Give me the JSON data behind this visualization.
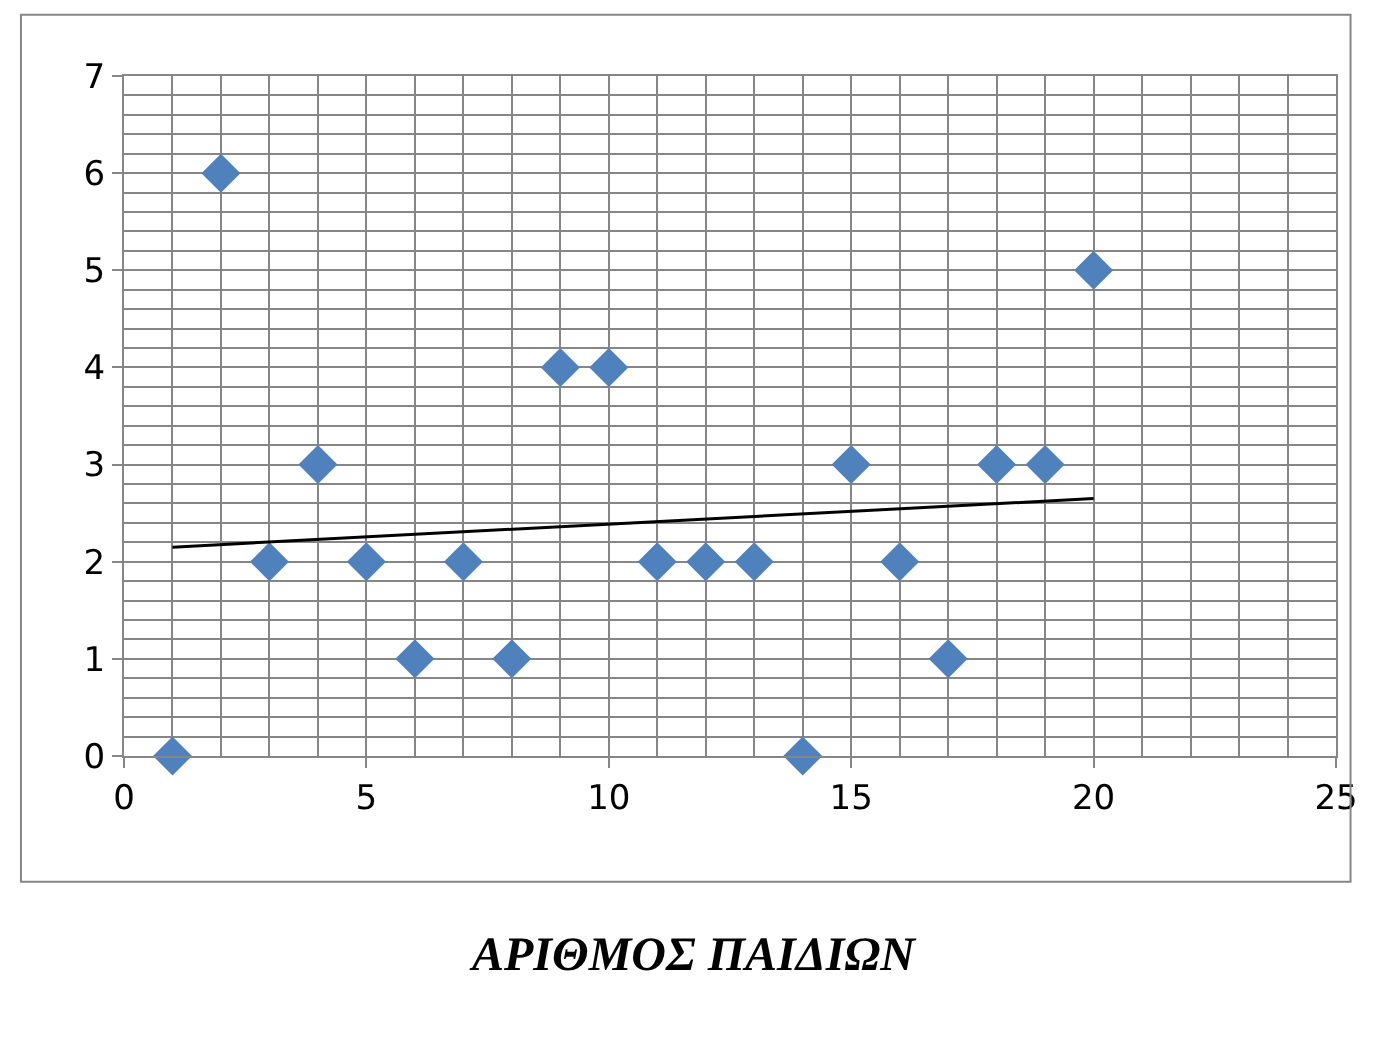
{
  "chart_data": {
    "type": "scatter",
    "xlabel": "ΑΡΙΘΜΟΣ ΠΑΙΔΙΩΝ",
    "x": [
      1,
      2,
      3,
      4,
      5,
      6,
      7,
      8,
      9,
      10,
      11,
      12,
      13,
      14,
      15,
      16,
      17,
      18,
      19,
      20
    ],
    "series": [
      {
        "color": "#4f81bd",
        "marker": "diamond",
        "values": [
          0,
          6,
          2,
          3,
          2,
          1,
          2,
          1,
          4,
          4,
          2,
          2,
          2,
          0,
          3,
          2,
          1,
          3,
          3,
          5
        ]
      },
      {
        "type": "line",
        "color": "#000000",
        "x": [
          1,
          20
        ],
        "values": [
          2.15,
          2.65
        ],
        "marker": "none",
        "line_style": "solid"
      }
    ],
    "xlim": [
      0,
      25
    ],
    "xticks": [
      0,
      5,
      10,
      15,
      20,
      25
    ],
    "ylim": [
      0,
      7
    ],
    "yticks": [
      0,
      1,
      2,
      3,
      4,
      5,
      6,
      7
    ],
    "grid": true,
    "legend": false
  }
}
